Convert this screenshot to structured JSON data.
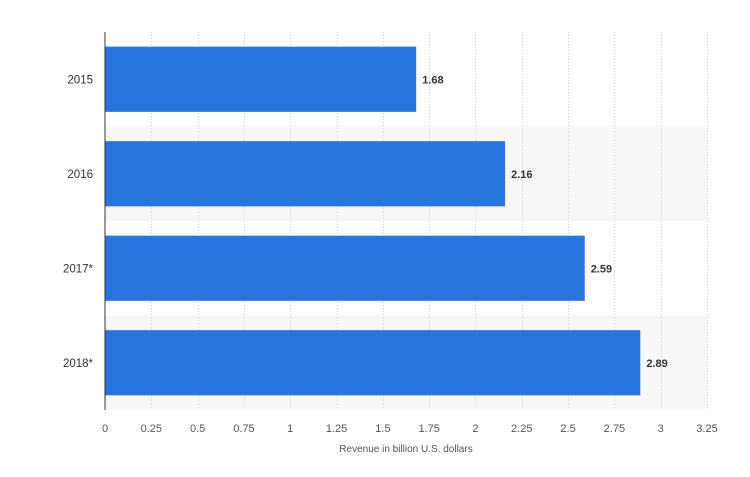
{
  "chart_data": {
    "type": "bar",
    "orientation": "horizontal",
    "categories": [
      "2015",
      "2016",
      "2017*",
      "2018*"
    ],
    "values": [
      1.68,
      2.16,
      2.59,
      2.89
    ],
    "value_labels": [
      "1.68",
      "2.16",
      "2.59",
      "2.89"
    ],
    "xlabel": "Revenue in billion U.S. dollars",
    "ylabel": "",
    "xlim": [
      0,
      3.25
    ],
    "x_ticks": [
      0,
      0.25,
      0.5,
      0.75,
      1,
      1.25,
      1.5,
      1.75,
      2,
      2.25,
      2.5,
      2.75,
      3,
      3.25
    ],
    "x_tick_labels": [
      "0",
      "0.25",
      "0.5",
      "0.75",
      "1",
      "1.25",
      "1.5",
      "1.75",
      "2",
      "2.25",
      "2.5",
      "2.75",
      "3",
      "3.25"
    ],
    "grid": true,
    "grid_style": "dotted vertical",
    "bar_color": "#2876dd",
    "alternate_band_color": "#f7f7f7"
  }
}
